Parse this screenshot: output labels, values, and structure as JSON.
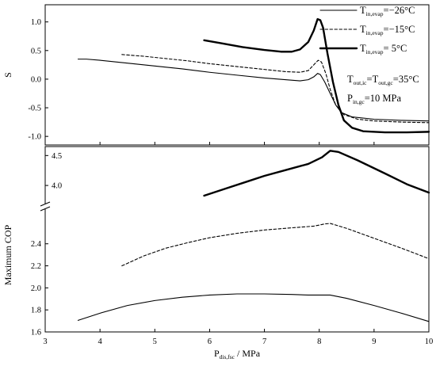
{
  "chart_data": [
    {
      "type": "line",
      "panel": "top",
      "ylabel": "S",
      "xlim": [
        3,
        10
      ],
      "ylim": [
        -1.15,
        1.3
      ],
      "yticks": [
        "-1.0",
        "-0.5",
        "0.0",
        "0.5",
        "1.0"
      ],
      "ytick_values": [
        -1.0,
        -0.5,
        0.0,
        0.5,
        1.0
      ],
      "series": [
        {
          "name_parts": {
            "base": "T",
            "sub": "in,evap",
            "tail": "=−26°C"
          },
          "style": "solid-thin",
          "points": [
            [
              3.6,
              0.35
            ],
            [
              3.75,
              0.35
            ],
            [
              4.0,
              0.33
            ],
            [
              4.5,
              0.28
            ],
            [
              5.0,
              0.23
            ],
            [
              5.5,
              0.18
            ],
            [
              6.0,
              0.12
            ],
            [
              6.5,
              0.07
            ],
            [
              7.0,
              0.02
            ],
            [
              7.4,
              -0.01
            ],
            [
              7.65,
              -0.03
            ],
            [
              7.8,
              -0.01
            ],
            [
              7.9,
              0.04
            ],
            [
              7.97,
              0.1
            ],
            [
              8.02,
              0.08
            ],
            [
              8.1,
              -0.05
            ],
            [
              8.2,
              -0.25
            ],
            [
              8.3,
              -0.45
            ],
            [
              8.4,
              -0.58
            ],
            [
              8.6,
              -0.66
            ],
            [
              9.0,
              -0.7
            ],
            [
              9.5,
              -0.72
            ],
            [
              10.0,
              -0.73
            ]
          ]
        },
        {
          "name_parts": {
            "base": "T",
            "sub": "in,evap",
            "tail": "=−15°C"
          },
          "style": "dashed",
          "points": [
            [
              4.4,
              0.43
            ],
            [
              4.8,
              0.4
            ],
            [
              5.2,
              0.36
            ],
            [
              5.6,
              0.32
            ],
            [
              6.0,
              0.27
            ],
            [
              6.5,
              0.22
            ],
            [
              7.0,
              0.17
            ],
            [
              7.4,
              0.13
            ],
            [
              7.65,
              0.12
            ],
            [
              7.8,
              0.15
            ],
            [
              7.9,
              0.25
            ],
            [
              7.98,
              0.33
            ],
            [
              8.04,
              0.3
            ],
            [
              8.12,
              0.1
            ],
            [
              8.2,
              -0.18
            ],
            [
              8.3,
              -0.45
            ],
            [
              8.45,
              -0.62
            ],
            [
              8.7,
              -0.7
            ],
            [
              9.0,
              -0.73
            ],
            [
              9.5,
              -0.75
            ],
            [
              10.0,
              -0.76
            ]
          ]
        },
        {
          "name_parts": {
            "base": "T",
            "sub": "in,evap",
            "tail": "= 5°C"
          },
          "style": "solid-thick",
          "points": [
            [
              5.9,
              0.68
            ],
            [
              6.2,
              0.63
            ],
            [
              6.6,
              0.56
            ],
            [
              7.0,
              0.51
            ],
            [
              7.3,
              0.48
            ],
            [
              7.5,
              0.48
            ],
            [
              7.65,
              0.52
            ],
            [
              7.8,
              0.65
            ],
            [
              7.9,
              0.85
            ],
            [
              7.97,
              1.05
            ],
            [
              8.02,
              1.03
            ],
            [
              8.07,
              0.9
            ],
            [
              8.15,
              0.45
            ],
            [
              8.25,
              -0.05
            ],
            [
              8.35,
              -0.45
            ],
            [
              8.45,
              -0.72
            ],
            [
              8.6,
              -0.85
            ],
            [
              8.8,
              -0.91
            ],
            [
              9.2,
              -0.93
            ],
            [
              9.6,
              -0.93
            ],
            [
              10.0,
              -0.92
            ]
          ]
        }
      ],
      "annotations": [
        {
          "parts": [
            {
              "t": "T"
            },
            {
              "t": "out,ic",
              "sub": true
            },
            {
              "t": "="
            },
            {
              "t": "T"
            },
            {
              "t": "out,gc",
              "sub": true
            },
            {
              "t": "=35°C"
            }
          ]
        },
        {
          "parts": [
            {
              "t": "P"
            },
            {
              "t": "in,gc",
              "sub": true
            },
            {
              "t": "=10 MPa"
            }
          ]
        }
      ]
    },
    {
      "type": "line",
      "panel": "bottom",
      "ylabel": "Maximum COP",
      "xlabel_parts": [
        {
          "t": "P"
        },
        {
          "t": "dis,fsc",
          "sub": true
        },
        {
          "t": " / MPa"
        }
      ],
      "xlim": [
        3,
        10
      ],
      "xticks": [
        "3",
        "4",
        "5",
        "6",
        "7",
        "8",
        "9",
        "10"
      ],
      "xtick_values": [
        3,
        4,
        5,
        6,
        7,
        8,
        9,
        10
      ],
      "axis_break": true,
      "upper_segment": {
        "ylim": [
          3.75,
          4.65
        ],
        "yticks": [
          "4.0",
          "4.5"
        ],
        "ytick_values": [
          4.0,
          4.5
        ]
      },
      "lower_segment": {
        "ylim": [
          1.6,
          2.7
        ],
        "yticks": [
          "1.6",
          "1.8",
          "2.0",
          "2.2",
          "2.4"
        ],
        "ytick_values": [
          1.6,
          1.8,
          2.0,
          2.2,
          2.4
        ]
      },
      "series": [
        {
          "style": "solid-thin",
          "segment": "lower",
          "points": [
            [
              3.6,
              1.705
            ],
            [
              4.0,
              1.77
            ],
            [
              4.5,
              1.84
            ],
            [
              5.0,
              1.885
            ],
            [
              5.5,
              1.915
            ],
            [
              6.0,
              1.935
            ],
            [
              6.5,
              1.945
            ],
            [
              7.0,
              1.945
            ],
            [
              7.5,
              1.94
            ],
            [
              7.8,
              1.935
            ],
            [
              8.0,
              1.935
            ],
            [
              8.2,
              1.935
            ],
            [
              8.5,
              1.905
            ],
            [
              9.0,
              1.84
            ],
            [
              9.5,
              1.77
            ],
            [
              10.0,
              1.695
            ]
          ]
        },
        {
          "style": "dashed",
          "segment": "lower",
          "points": [
            [
              4.4,
              2.2
            ],
            [
              4.8,
              2.29
            ],
            [
              5.2,
              2.36
            ],
            [
              5.6,
              2.41
            ],
            [
              6.0,
              2.455
            ],
            [
              6.5,
              2.495
            ],
            [
              7.0,
              2.525
            ],
            [
              7.5,
              2.545
            ],
            [
              7.9,
              2.56
            ],
            [
              8.1,
              2.58
            ],
            [
              8.2,
              2.585
            ],
            [
              8.5,
              2.54
            ],
            [
              9.0,
              2.45
            ],
            [
              9.5,
              2.36
            ],
            [
              10.0,
              2.265
            ]
          ]
        },
        {
          "style": "solid-thick",
          "segment": "upper",
          "points": [
            [
              5.9,
              3.83
            ],
            [
              6.3,
              3.95
            ],
            [
              6.7,
              4.07
            ],
            [
              7.0,
              4.16
            ],
            [
              7.4,
              4.26
            ],
            [
              7.8,
              4.36
            ],
            [
              8.05,
              4.47
            ],
            [
              8.2,
              4.58
            ],
            [
              8.35,
              4.56
            ],
            [
              8.7,
              4.42
            ],
            [
              9.2,
              4.2
            ],
            [
              9.6,
              4.02
            ],
            [
              10.0,
              3.88
            ]
          ]
        }
      ]
    }
  ]
}
